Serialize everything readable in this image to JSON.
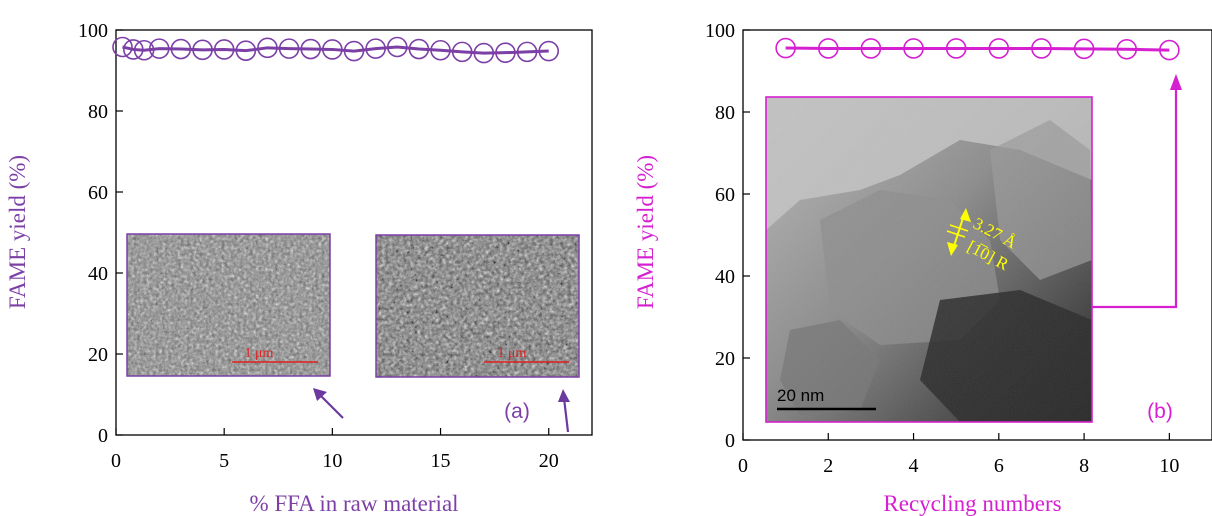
{
  "chart_data": [
    {
      "panel": "(a)",
      "type": "line",
      "xlabel": "% FFA in raw material",
      "ylabel": "FAME yield (%)",
      "xlim": [
        0,
        22
      ],
      "ylim": [
        0,
        100
      ],
      "xticks": [
        0,
        5,
        10,
        15,
        20
      ],
      "yticks": [
        0,
        20,
        40,
        60,
        80,
        100
      ],
      "grid": false,
      "series": [
        {
          "x": [
            0.3,
            0.8,
            1.3,
            2,
            3,
            4,
            5,
            6,
            7,
            8,
            9,
            10,
            11,
            12,
            13,
            14,
            15,
            16,
            17,
            18,
            19,
            20
          ],
          "y": [
            95.8,
            95.2,
            95.0,
            95.4,
            95.3,
            95.1,
            95.2,
            94.9,
            95.6,
            95.4,
            95.3,
            95.2,
            94.8,
            95.4,
            95.8,
            95.3,
            95.0,
            94.6,
            94.3,
            94.4,
            94.6,
            94.8
          ]
        }
      ],
      "colors": {
        "series": "#7B3FA6",
        "axis_label": "#7B3FA6",
        "arrow": "#6A3A9E",
        "panel_label": "#7B3FA6",
        "inset_border": "#7B3FA6",
        "scale_bar": "#E0201F"
      },
      "insets": [
        {
          "kind": "SEM micrograph",
          "scale_label": "1 μm",
          "points_to_x": 9.5
        },
        {
          "kind": "SEM micrograph",
          "scale_label": "1 μm",
          "points_to_x": 20
        }
      ]
    },
    {
      "panel": "(b)",
      "type": "line",
      "xlabel": "Recycling numbers",
      "ylabel": "FAME yield (%)",
      "xlim": [
        0,
        11
      ],
      "ylim": [
        0,
        100
      ],
      "xticks": [
        0,
        2,
        4,
        6,
        8,
        10
      ],
      "yticks": [
        0,
        20,
        40,
        60,
        80,
        100
      ],
      "grid": false,
      "series": [
        {
          "x": [
            1,
            2,
            3,
            4,
            5,
            6,
            7,
            8,
            9,
            10
          ],
          "y": [
            95.6,
            95.5,
            95.5,
            95.5,
            95.5,
            95.5,
            95.5,
            95.4,
            95.3,
            95.1
          ]
        }
      ],
      "colors": {
        "series": "#D61FD0",
        "axis_label": "#D61FD0",
        "arrow": "#D61FD0",
        "panel_label": "#D61FD0",
        "inset_border": "#D61FD0",
        "inset_annotation": "#FFFF00"
      },
      "insets": [
        {
          "kind": "TEM micrograph",
          "scale_label": "20 nm",
          "annotation_line1": "3.27 Å",
          "annotation_line2": "[1̅0] R",
          "points_to_x": 10
        }
      ]
    }
  ]
}
